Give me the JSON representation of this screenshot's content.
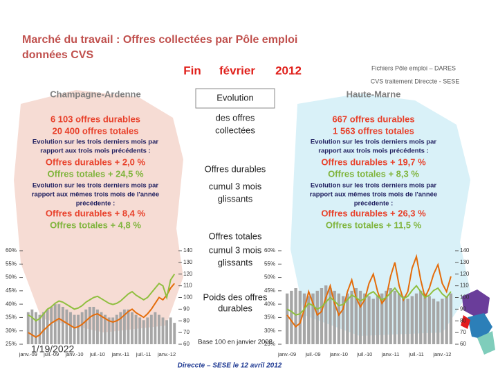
{
  "header": {
    "title": "Marché du travail : Offres collectées par Pôle emploi",
    "subtitle": "données CVS",
    "period": [
      "Fin",
      "février",
      "2012"
    ],
    "source": [
      "Fichiers Pôle emploi – DARES",
      "CVS traitement Direccte - SESE"
    ]
  },
  "left_panel": {
    "region": "Champagne-Ardenne",
    "lines": [
      "6 103 offres durables",
      "20 400 offres totales",
      "Evolution sur les trois derniers mois par",
      "rapport aux trois mois précédents :",
      "Offres durables + 2,0 %",
      "Offres totales + 24,5 %",
      "Evolution sur les trois derniers mois par",
      "rapport aux mêmes trois mois de l'année",
      "précédente :",
      "Offres durables + 8,4 %",
      "Offres totales + 4,8 %"
    ]
  },
  "right_panel": {
    "region": "Haute-Marne",
    "lines": [
      "667 offres durables",
      "1 563 offres totales",
      "Evolution sur les trois derniers mois par",
      "rapport aux trois mois précédents :",
      "Offres durables + 19,7 %",
      "Offres totales + 8,3 %",
      "Evolution sur les trois derniers mois par",
      "rapport aux mêmes trois mois de l'année",
      "précédente :",
      "Offres durables + 26,3 %",
      "Offres totales + 11,5 %"
    ]
  },
  "center": {
    "lines": [
      "Evolution",
      "des offres",
      "collectées",
      "Offres durables",
      "cumul 3 mois",
      "glissants",
      "Offres totales",
      "cumul 3 mois",
      "glissants",
      "Poids des offres",
      "durables",
      "Base 100 en janvier 2008"
    ]
  },
  "footer": {
    "date": "1/19/2022",
    "credit": "Direccte – SESE le 12 avril 2012"
  },
  "chart_data": [
    {
      "type": "combo",
      "categories": [
        "janv.-09",
        null,
        null,
        null,
        null,
        null,
        "juil.-09",
        null,
        null,
        null,
        null,
        null,
        "janv.-10",
        null,
        null,
        null,
        null,
        null,
        "juil.-10",
        null,
        null,
        null,
        null,
        null,
        "janv.-11",
        null,
        null,
        null,
        null,
        null,
        "juil.-11",
        null,
        null,
        null,
        null,
        null,
        "janv.-12",
        null,
        null
      ],
      "ylim": [
        25,
        60
      ],
      "yticks": [
        {
          "value": 25,
          "label": "25%"
        },
        {
          "value": 30,
          "label": "30%"
        },
        {
          "value": 35,
          "label": "35%"
        },
        {
          "value": 40,
          "label": "40%"
        },
        {
          "value": 45,
          "label": "45%"
        },
        {
          "value": 50,
          "label": "50%"
        },
        {
          "value": 55,
          "label": "55%"
        },
        {
          "value": 60,
          "label": "60%"
        }
      ],
      "y2lim": [
        60,
        140
      ],
      "y2ticks": [
        60,
        70,
        80,
        90,
        100,
        110,
        120,
        130,
        140
      ],
      "series": [
        {
          "type": "bar",
          "color": "#a6a6a6",
          "values": [
            37,
            38,
            37,
            36,
            37,
            38,
            39,
            40,
            40,
            39,
            38,
            37,
            36,
            36,
            37,
            38,
            39,
            39,
            38,
            37,
            36,
            35,
            35,
            36,
            37,
            38,
            38,
            37,
            36,
            35,
            34,
            35,
            36,
            37,
            36,
            35,
            34,
            35,
            33
          ]
        },
        {
          "type": "line",
          "axis": "y2",
          "color": "#e46c0a",
          "values": [
            70,
            68,
            66,
            68,
            72,
            75,
            78,
            80,
            82,
            80,
            78,
            76,
            74,
            75,
            77,
            80,
            83,
            85,
            86,
            84,
            82,
            80,
            79,
            80,
            82,
            85,
            88,
            90,
            87,
            85,
            83,
            86,
            90,
            95,
            100,
            98,
            102,
            108,
            112
          ]
        },
        {
          "type": "line",
          "axis": "y2",
          "color": "#8fbf3f",
          "values": [
            85,
            83,
            80,
            82,
            86,
            90,
            92,
            95,
            97,
            96,
            94,
            92,
            90,
            91,
            93,
            96,
            98,
            100,
            101,
            99,
            97,
            95,
            94,
            95,
            97,
            100,
            103,
            105,
            102,
            100,
            98,
            100,
            104,
            108,
            112,
            110,
            100,
            115,
            120
          ]
        }
      ]
    },
    {
      "type": "combo",
      "categories": [
        "janv.-09",
        null,
        null,
        null,
        null,
        null,
        "juil.-09",
        null,
        null,
        null,
        null,
        null,
        "janv.-10",
        null,
        null,
        null,
        null,
        null,
        "juil.-10",
        null,
        null,
        null,
        null,
        null,
        "janv.-11",
        null,
        null,
        null,
        null,
        null,
        "juil.-11",
        null,
        null,
        null,
        null,
        null,
        "janv.-12",
        null,
        null
      ],
      "ylim": [
        25,
        60
      ],
      "yticks": [
        {
          "value": 25,
          "label": "25%"
        },
        {
          "value": 30,
          "label": "30%"
        },
        {
          "value": 35,
          "label": "35%"
        },
        {
          "value": 40,
          "label": "40%"
        },
        {
          "value": 45,
          "label": "45%"
        },
        {
          "value": 50,
          "label": "50%"
        },
        {
          "value": 55,
          "label": "55%"
        },
        {
          "value": 60,
          "label": "60%"
        }
      ],
      "y2lim": [
        60,
        140
      ],
      "y2ticks": [
        60,
        70,
        80,
        90,
        100,
        110,
        120,
        130,
        140
      ],
      "series": [
        {
          "type": "bar",
          "color": "#a6a6a6",
          "values": [
            44,
            45,
            46,
            45,
            44,
            43,
            44,
            45,
            46,
            47,
            46,
            45,
            44,
            43,
            44,
            45,
            46,
            45,
            44,
            43,
            42,
            43,
            44,
            45,
            46,
            45,
            44,
            43,
            42,
            43,
            44,
            45,
            44,
            43,
            42,
            41,
            42,
            43,
            44
          ]
        },
        {
          "type": "line",
          "axis": "y2",
          "color": "#e46c0a",
          "values": [
            85,
            80,
            75,
            78,
            90,
            105,
            95,
            85,
            88,
            100,
            110,
            95,
            85,
            90,
            105,
            115,
            100,
            92,
            98,
            112,
            120,
            105,
            95,
            100,
            118,
            130,
            110,
            98,
            105,
            125,
            135,
            115,
            100,
            108,
            120,
            128,
            112,
            105,
            118
          ]
        },
        {
          "type": "line",
          "axis": "y2",
          "color": "#8fbf3f",
          "values": [
            90,
            88,
            85,
            86,
            90,
            95,
            93,
            90,
            92,
            96,
            100,
            97,
            93,
            94,
            98,
            102,
            100,
            97,
            99,
            103,
            105,
            101,
            98,
            100,
            104,
            108,
            103,
            99,
            101,
            106,
            110,
            105,
            100,
            102,
            106,
            108,
            103,
            100,
            105
          ]
        }
      ]
    }
  ]
}
